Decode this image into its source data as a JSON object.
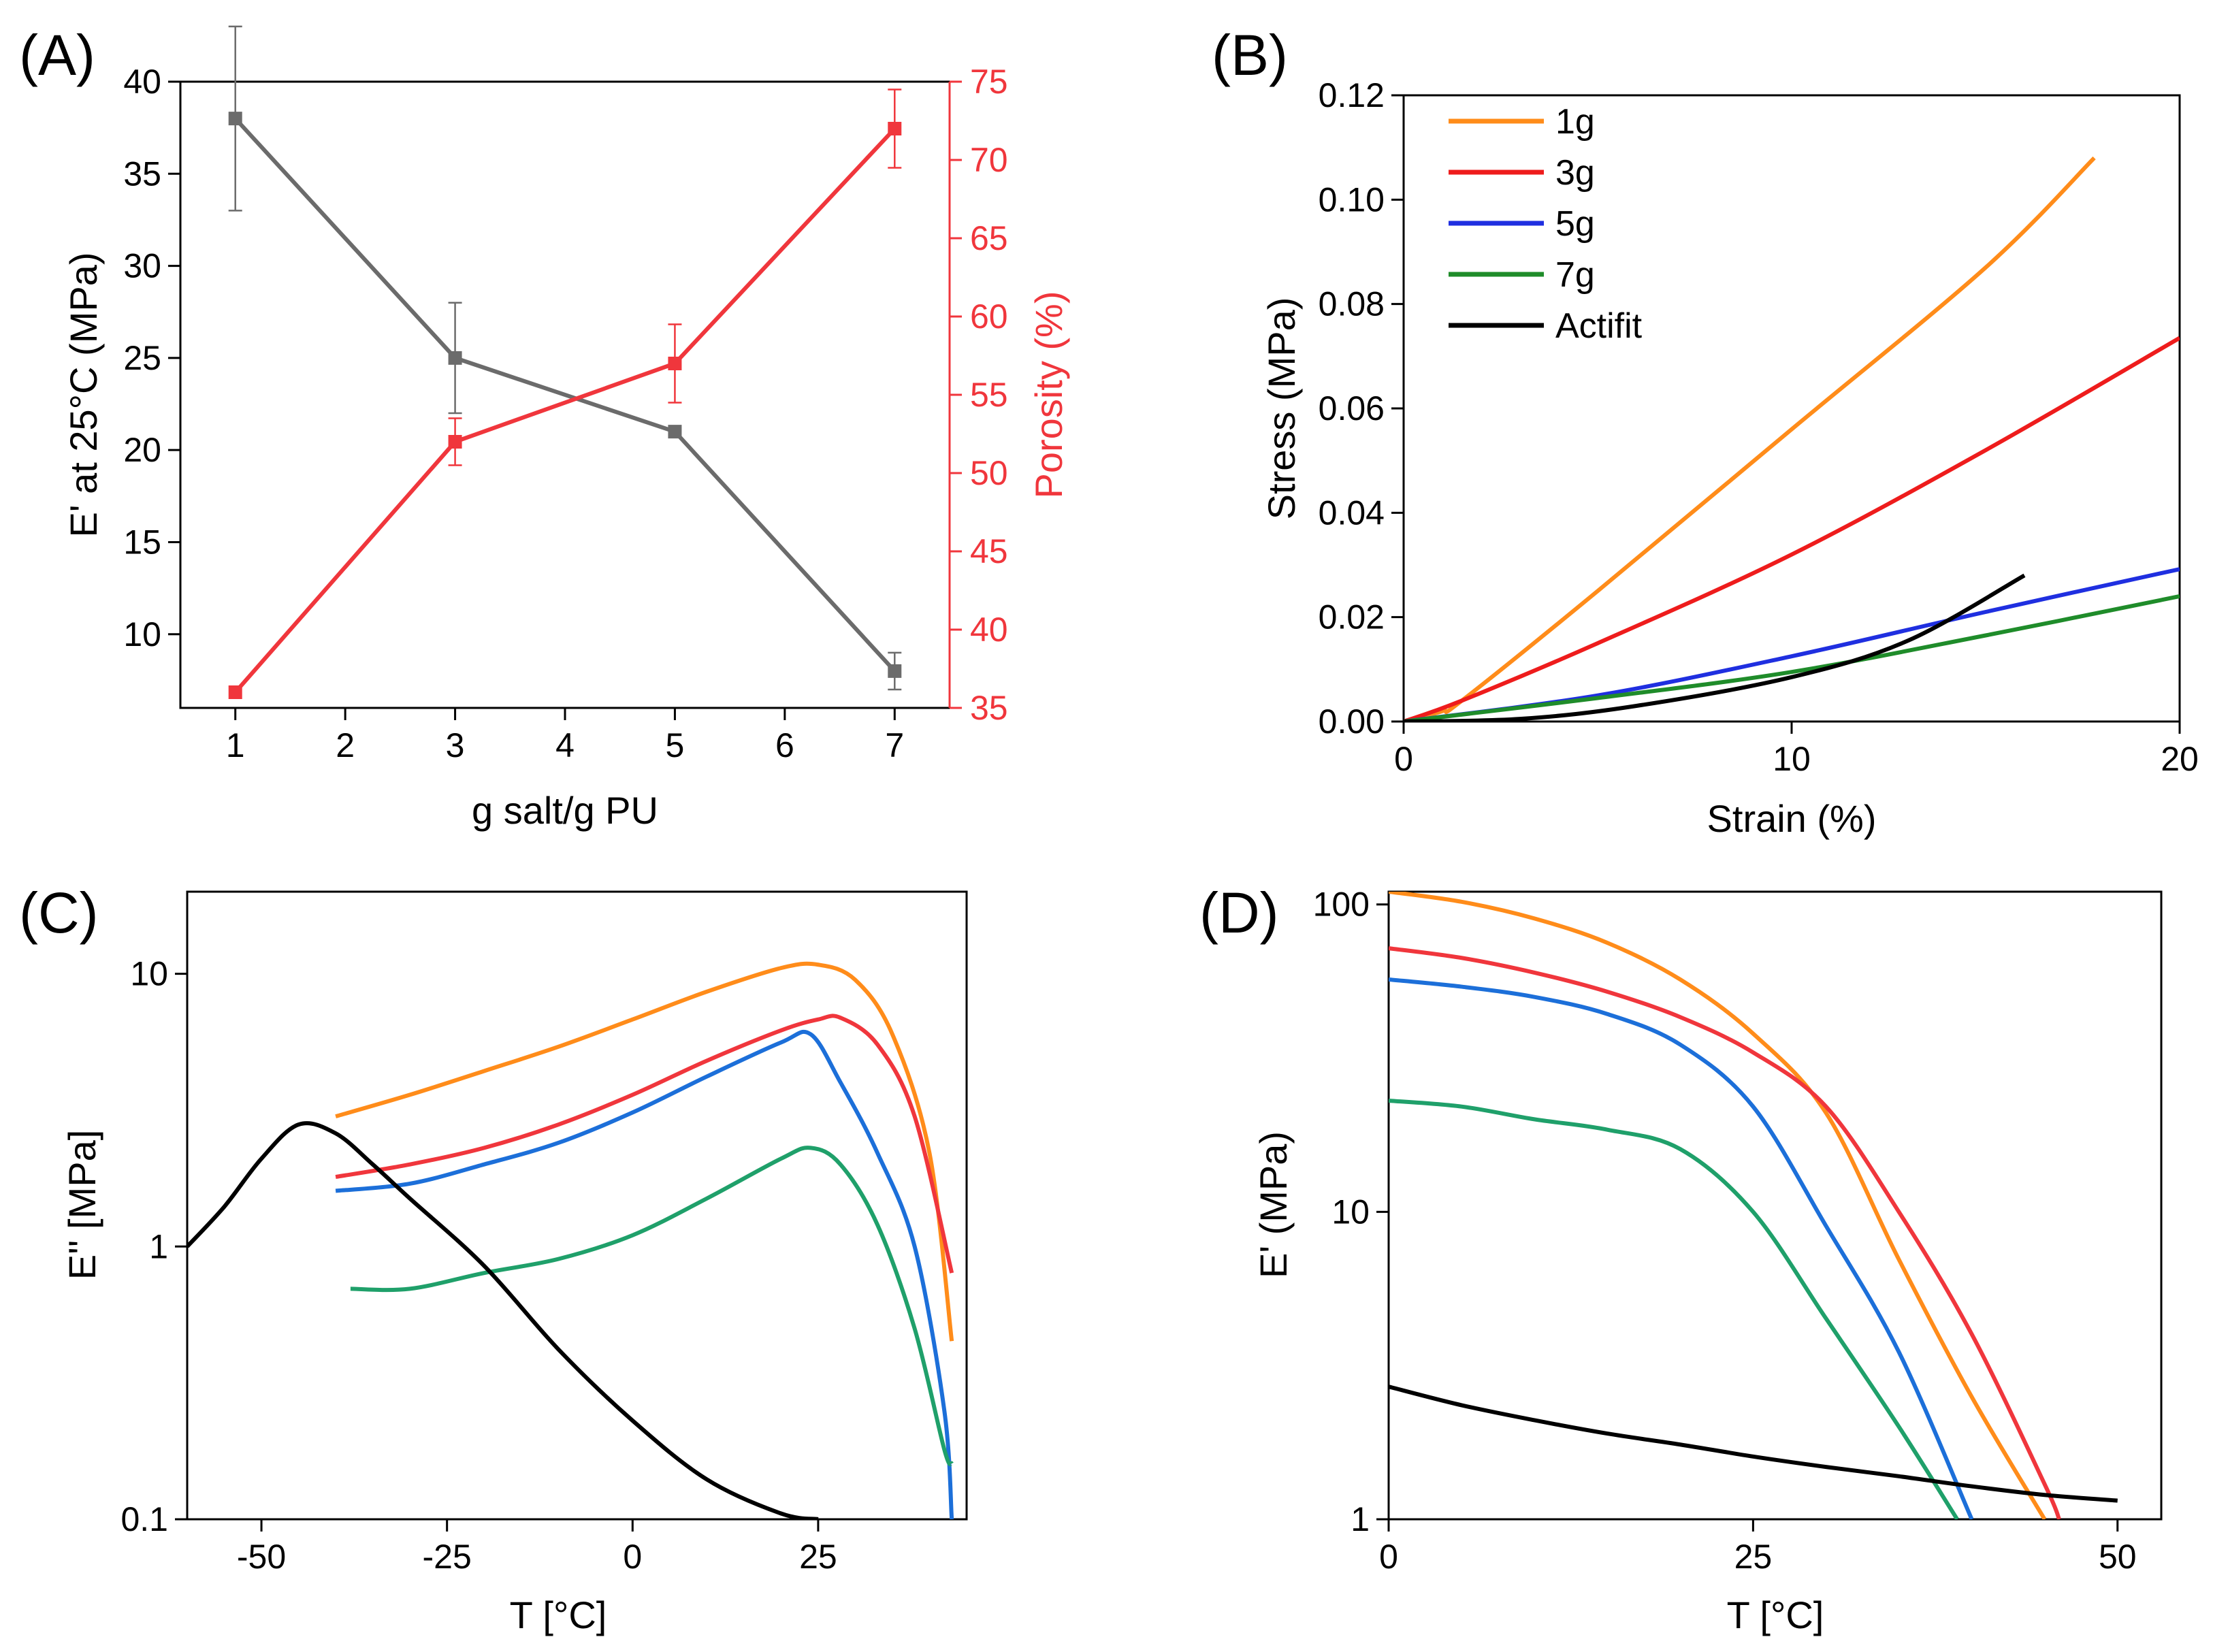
{
  "chart_data": [
    {
      "panel": "(A)",
      "type": "line",
      "xlabel": "g salt/g PU",
      "xlim": [
        0.5,
        7.5
      ],
      "xticks": [
        "1",
        "2",
        "3",
        "4",
        "5",
        "6",
        "7"
      ],
      "ylabel": "E' at 25°C (MPa)",
      "ylim": [
        6,
        40
      ],
      "yticks": [
        "10",
        "15",
        "20",
        "25",
        "30",
        "35",
        "40"
      ],
      "y2label": "Porosity (%)",
      "y2lim": [
        35,
        75
      ],
      "y2ticks": [
        "35",
        "40",
        "45",
        "50",
        "55",
        "60",
        "65",
        "70",
        "75"
      ],
      "series": [
        {
          "name": "E' at 25°C",
          "axis": "left",
          "color": "#6b6b6b",
          "x": [
            1,
            3,
            5,
            7
          ],
          "values": [
            38,
            25,
            21,
            8
          ],
          "errors": [
            5,
            3,
            0,
            1
          ]
        },
        {
          "name": "Porosity",
          "axis": "right",
          "color": "#f0363c",
          "x": [
            1,
            3,
            5,
            7
          ],
          "values": [
            36,
            52,
            57,
            72
          ],
          "errors": [
            0,
            1.5,
            2.5,
            2.5
          ]
        }
      ]
    },
    {
      "panel": "(B)",
      "type": "line",
      "xlabel": "Strain (%)",
      "xlim": [
        0,
        20
      ],
      "xticks": [
        "0",
        "10",
        "20"
      ],
      "ylabel": "Stress (MPa)",
      "ylim": [
        0,
        0.12
      ],
      "yticks": [
        "0.00",
        "0.02",
        "0.04",
        "0.06",
        "0.08",
        "0.10",
        "0.12"
      ],
      "legend": "top-left",
      "series": [
        {
          "name": "1g",
          "color": "#ff8c1a",
          "x": [
            0,
            1,
            1.5,
            5,
            10,
            15,
            17.8
          ],
          "values": [
            0,
            0.002,
            0.004,
            0.025,
            0.056,
            0.087,
            0.108
          ]
        },
        {
          "name": "3g",
          "color": "#ee1c1c",
          "x": [
            0,
            1.5,
            5,
            10,
            15,
            20
          ],
          "values": [
            0,
            0.004,
            0.015,
            0.032,
            0.052,
            0.0735
          ]
        },
        {
          "name": "5g",
          "color": "#1f2fe0",
          "x": [
            0,
            5,
            10,
            15,
            20
          ],
          "values": [
            0,
            0.005,
            0.0125,
            0.021,
            0.0292
          ]
        },
        {
          "name": "7g",
          "color": "#1f8c2a",
          "x": [
            0,
            5,
            10,
            15,
            20
          ],
          "values": [
            0,
            0.0045,
            0.0095,
            0.0165,
            0.024
          ]
        },
        {
          "name": "Actifit",
          "color": "#000000",
          "x": [
            0,
            3,
            6,
            10,
            13,
            16
          ],
          "values": [
            0,
            0.0005,
            0.003,
            0.0085,
            0.0155,
            0.028
          ]
        }
      ]
    },
    {
      "panel": "(C)",
      "type": "line",
      "xlabel": "T [°C]",
      "xlim": [
        -60,
        45
      ],
      "xticks": [
        "-50",
        "-25",
        "0",
        "25"
      ],
      "ylabel": "E'' [MPa]",
      "yscale": "log",
      "ylim": [
        0.1,
        20
      ],
      "yticks": [
        "0.1",
        "1",
        "10"
      ],
      "series": [
        {
          "name": "1g",
          "color": "#ff8c1a",
          "x": [
            -40,
            -30,
            -20,
            -10,
            0,
            10,
            20,
            25,
            30,
            35,
            40,
            43
          ],
          "values": [
            3.0,
            3.6,
            4.4,
            5.4,
            6.8,
            8.6,
            10.5,
            10.8,
            9.5,
            6.0,
            2.2,
            0.45
          ]
        },
        {
          "name": "3g",
          "color": "#f0363c",
          "x": [
            -40,
            -30,
            -20,
            -10,
            0,
            10,
            20,
            25,
            28,
            33,
            38,
            43
          ],
          "values": [
            1.8,
            2.0,
            2.3,
            2.8,
            3.6,
            4.8,
            6.2,
            6.8,
            6.9,
            5.5,
            3.0,
            0.8
          ]
        },
        {
          "name": "5g",
          "color": "#1c6fd9",
          "x": [
            -40,
            -30,
            -20,
            -10,
            0,
            10,
            20,
            24,
            28,
            33,
            38,
            42,
            43
          ],
          "values": [
            1.6,
            1.7,
            2.0,
            2.4,
            3.1,
            4.2,
            5.6,
            6.0,
            4.0,
            2.2,
            1.0,
            0.25,
            0.1
          ]
        },
        {
          "name": "7g",
          "color": "#1fa06a",
          "x": [
            -38,
            -30,
            -20,
            -10,
            0,
            10,
            20,
            24,
            28,
            33,
            38,
            42,
            43
          ],
          "values": [
            0.7,
            0.7,
            0.8,
            0.9,
            1.1,
            1.5,
            2.1,
            2.3,
            2.0,
            1.2,
            0.5,
            0.18,
            0.16
          ]
        },
        {
          "name": "Actifit",
          "color": "#000000",
          "x": [
            -60,
            -55,
            -50,
            -45,
            -40,
            -35,
            -30,
            -20,
            -10,
            0,
            10,
            20,
            25
          ],
          "values": [
            1.0,
            1.4,
            2.1,
            2.8,
            2.6,
            2.0,
            1.5,
            0.85,
            0.42,
            0.23,
            0.14,
            0.105,
            0.1
          ]
        }
      ]
    },
    {
      "panel": "(D)",
      "type": "line",
      "xlabel": "T [°C]",
      "xlim": [
        0,
        53
      ],
      "xticks": [
        "0",
        "25",
        "50"
      ],
      "ylabel": "E' (MPa)",
      "yscale": "log",
      "ylim": [
        1,
        110
      ],
      "yticks": [
        "1",
        "10",
        "100"
      ],
      "series": [
        {
          "name": "1g",
          "color": "#ff8c1a",
          "x": [
            0,
            5,
            10,
            15,
            20,
            25,
            30,
            35,
            40,
            45
          ],
          "values": [
            110,
            102,
            90,
            75,
            57,
            38,
            21,
            7,
            2.5,
            1
          ]
        },
        {
          "name": "3g",
          "color": "#f0363c",
          "x": [
            0,
            5,
            10,
            15,
            20,
            25,
            30,
            35,
            40,
            45,
            46
          ],
          "values": [
            72,
            67,
            60,
            52,
            43,
            33,
            22,
            10,
            4,
            1.3,
            1
          ]
        },
        {
          "name": "5g",
          "color": "#1c6fd9",
          "x": [
            0,
            5,
            10,
            15,
            20,
            25,
            30,
            35,
            40
          ],
          "values": [
            57,
            54,
            50,
            44,
            35,
            22,
            9,
            3.5,
            1
          ]
        },
        {
          "name": "7g",
          "color": "#1fa06a",
          "x": [
            0,
            5,
            10,
            15,
            20,
            25,
            30,
            35,
            39
          ],
          "values": [
            23,
            22,
            20,
            18.5,
            16,
            10,
            4.5,
            2,
            1
          ]
        },
        {
          "name": "Actifit",
          "color": "#000000",
          "x": [
            0,
            5,
            10,
            15,
            20,
            25,
            30,
            35,
            40,
            45,
            50
          ],
          "values": [
            2.7,
            2.35,
            2.1,
            1.9,
            1.75,
            1.6,
            1.48,
            1.38,
            1.28,
            1.2,
            1.15
          ]
        }
      ]
    }
  ]
}
